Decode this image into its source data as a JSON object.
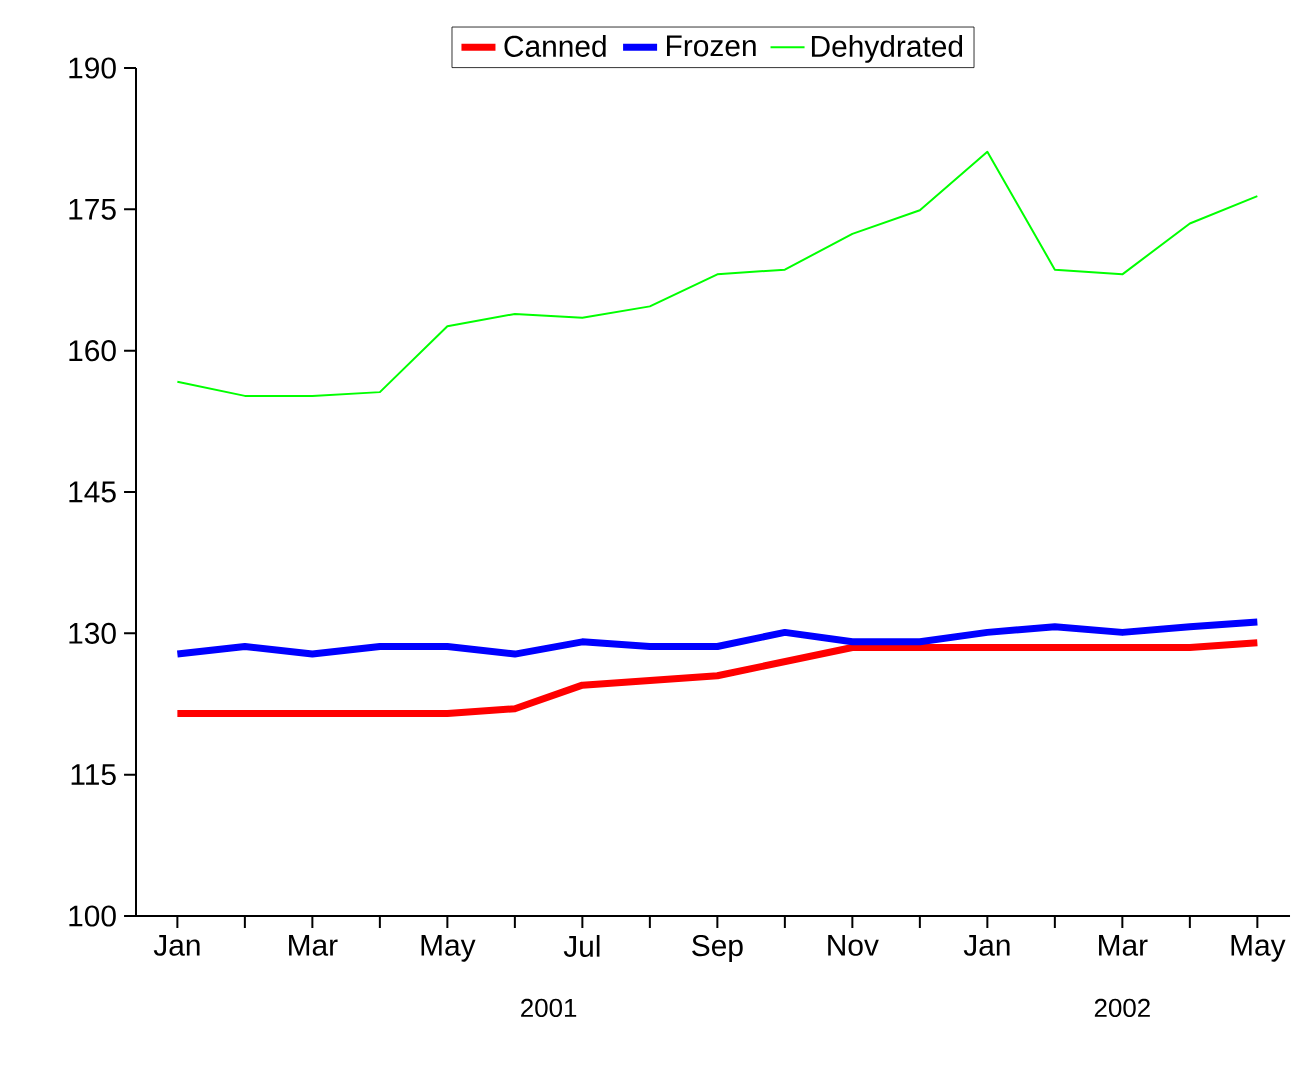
{
  "chart_data": {
    "type": "line",
    "x": [
      "2001-01",
      "2001-02",
      "2001-03",
      "2001-04",
      "2001-05",
      "2001-06",
      "2001-07",
      "2001-08",
      "2001-09",
      "2001-10",
      "2001-11",
      "2001-12",
      "2002-01",
      "2002-02",
      "2002-03",
      "2002-04",
      "2002-05"
    ],
    "series": [
      {
        "name": "Canned",
        "color": "#ff0000",
        "values": [
          121.5,
          121.5,
          121.5,
          121.5,
          121.5,
          122.0,
          124.5,
          125.0,
          125.5,
          127.0,
          128.5,
          128.5,
          128.5,
          128.5,
          128.5,
          128.5,
          129.0
        ]
      },
      {
        "name": "Frozen",
        "color": "#0000ff",
        "values": [
          127.8,
          128.6,
          127.8,
          128.6,
          128.6,
          127.8,
          129.1,
          128.6,
          128.6,
          130.1,
          129.1,
          129.1,
          130.1,
          130.7,
          130.1,
          130.7,
          131.2
        ]
      },
      {
        "name": "Dehydrated",
        "color": "#00ff00",
        "values": [
          156.7,
          155.2,
          155.2,
          155.6,
          162.6,
          163.9,
          163.5,
          164.7,
          168.1,
          168.6,
          172.4,
          174.9,
          181.1,
          168.6,
          168.1,
          173.5,
          176.4
        ]
      }
    ],
    "xlim": [
      "2000-12-13",
      "2002-05-16"
    ],
    "xticks": [
      {
        "value": "2001-01",
        "label": "Jan"
      },
      {
        "value": "2001-02",
        "label": null
      },
      {
        "value": "2001-03",
        "label": "Mar"
      },
      {
        "value": "2001-04",
        "label": null
      },
      {
        "value": "2001-05",
        "label": "May"
      },
      {
        "value": "2001-06",
        "label": null
      },
      {
        "value": "2001-07",
        "label": "Jul"
      },
      {
        "value": "2001-08",
        "label": null
      },
      {
        "value": "2001-09",
        "label": "Sep"
      },
      {
        "value": "2001-10",
        "label": null
      },
      {
        "value": "2001-11",
        "label": "Nov"
      },
      {
        "value": "2001-12",
        "label": null
      },
      {
        "value": "2002-01",
        "label": "Jan"
      },
      {
        "value": "2002-02",
        "label": null
      },
      {
        "value": "2002-03",
        "label": "Mar"
      },
      {
        "value": "2002-04",
        "label": null
      },
      {
        "value": "2002-05",
        "label": "May"
      }
    ],
    "ylim": [
      100,
      190
    ],
    "yticks": [
      100,
      115,
      130,
      145,
      160,
      175,
      190
    ],
    "annotations": [
      "2001",
      "2002"
    ],
    "legend": "top",
    "grid": false,
    "marker": "none",
    "line_style": "solid"
  }
}
